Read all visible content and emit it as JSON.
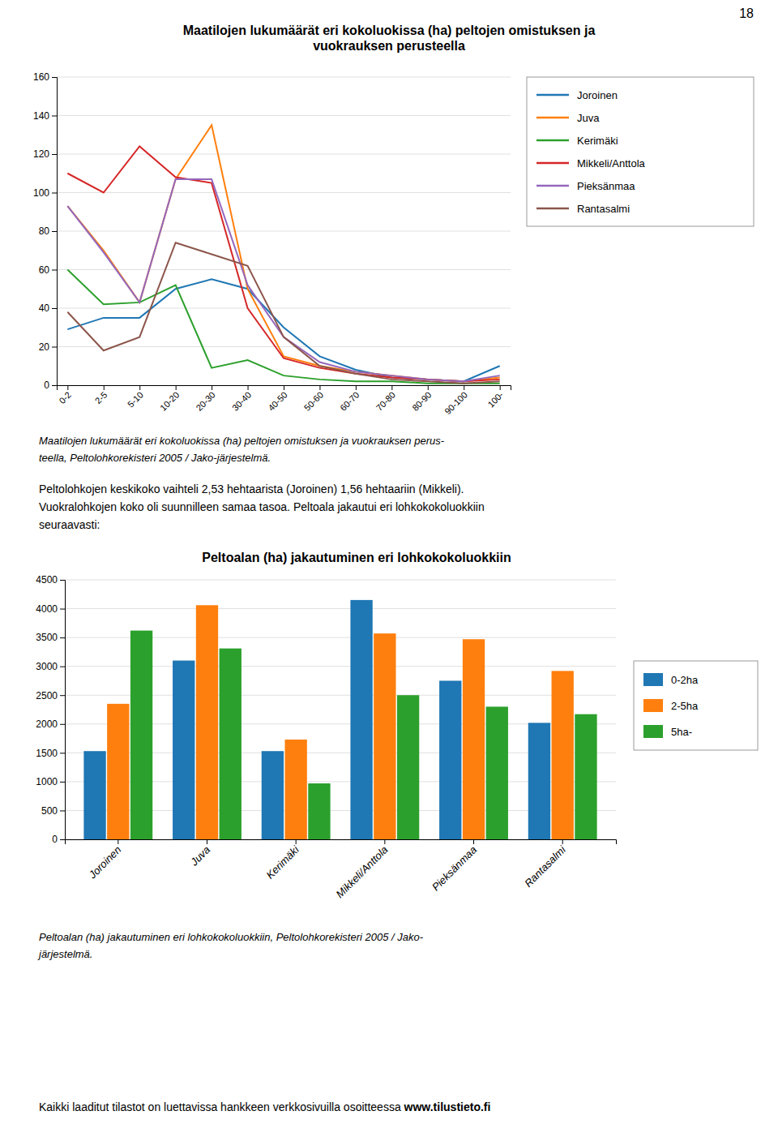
{
  "chart_data": [
    {
      "type": "line",
      "title": "Maatilojen lukumäärät eri kokoluokissa (ha) peltojen omistuksen ja\nvuokrauksen perusteella",
      "categories": [
        "0-2",
        "2-5",
        "5-10",
        "10-20",
        "20-30",
        "30-40",
        "40-50",
        "50-60",
        "60-70",
        "70-80",
        "80-90",
        "90-100",
        "100-"
      ],
      "series": [
        {
          "name": "Joroinen",
          "values": [
            29,
            35,
            35,
            50,
            55,
            50,
            30,
            15,
            8,
            4,
            3,
            2,
            10
          ]
        },
        {
          "name": "Juva",
          "values": [
            93,
            70,
            43,
            107,
            135,
            50,
            15,
            10,
            7,
            5,
            3,
            2,
            4
          ]
        },
        {
          "name": "Kerimäki",
          "values": [
            60,
            42,
            43,
            52,
            9,
            13,
            5,
            3,
            2,
            2,
            1,
            1,
            1
          ]
        },
        {
          "name": "Mikkeli/Anttola",
          "values": [
            110,
            100,
            124,
            108,
            105,
            40,
            14,
            9,
            6,
            4,
            3,
            2,
            3
          ]
        },
        {
          "name": "Pieksänmaa",
          "values": [
            93,
            69,
            43,
            107,
            107,
            52,
            25,
            12,
            7,
            5,
            3,
            2,
            5
          ]
        },
        {
          "name": "Rantasalmi",
          "values": [
            38,
            18,
            25,
            74,
            68,
            62,
            25,
            10,
            6,
            3,
            2,
            1,
            2
          ]
        }
      ],
      "ylim": [
        0,
        160
      ],
      "yticks": [
        0,
        20,
        40,
        60,
        80,
        100,
        120,
        140,
        160
      ],
      "grid": true,
      "legend": "right",
      "annotations": [
        "Maatilojen lukumäärät eri kokoluokissa (ha) peltojen omistuksen ja vuokrauksen perus-",
        "teella, Peltolohkorekisteri 2005 / Jako-järjestelmä."
      ]
    },
    {
      "type": "bar",
      "title": "Peltoalan (ha) jakautuminen eri lohkokokoluokkiin",
      "categories": [
        "Joroinen",
        "Juva",
        "Kerimäki",
        "Mikkeli/Anttola",
        "Pieksänmaa",
        "Rantasalmi"
      ],
      "series": [
        {
          "name": "0-2ha",
          "values": [
            1530,
            3100,
            1530,
            4150,
            2750,
            2020
          ]
        },
        {
          "name": "2-5ha",
          "values": [
            2350,
            4060,
            1730,
            3570,
            3470,
            2920
          ]
        },
        {
          "name": "5ha-",
          "values": [
            3620,
            3310,
            970,
            2500,
            2300,
            2170
          ]
        }
      ],
      "ylim": [
        0,
        4500
      ],
      "yticks": [
        0,
        500,
        1000,
        1500,
        2000,
        2500,
        3000,
        3500,
        4000,
        4500
      ],
      "grid": true,
      "legend": "right",
      "annotations": [
        "Peltoalan (ha) jakautuminen eri lohkokokoluokkiin, Peltolohkorekisteri 2005 / Jako-",
        "järjestelmä."
      ]
    }
  ],
  "page_number": "18",
  "body_text": [
    "Peltolohkojen keskikoko vaihteli 2,53 hehtaarista (Joroinen) 1,56 hehtaariin (Mikkeli).",
    "Vuokralohkojen koko oli suunnilleen samaa tasoa. Peltoala jakautui eri lohkokokoluokkiin",
    "seuraavasti:"
  ],
  "footer": [
    "Kaikki laaditut tilastot on luettavissa hankkeen verkkosivuilla osoitteessa ",
    "www.tilustieto.fi"
  ]
}
